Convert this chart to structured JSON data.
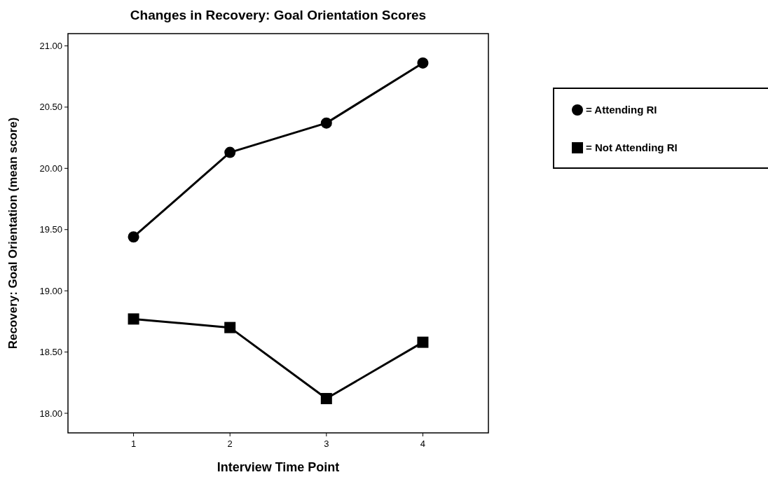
{
  "chart_data": {
    "type": "line",
    "title": "Changes in Recovery: Goal Orientation Scores",
    "xlabel": "Interview Time Point",
    "ylabel": "Recovery: Goal Orientation (mean score)",
    "x": [
      1,
      2,
      3,
      4
    ],
    "series": [
      {
        "name": "= Attending RI",
        "color": "#000000",
        "marker": "circle",
        "values": [
          19.44,
          20.13,
          20.37,
          20.86
        ]
      },
      {
        "name": "= Not Attending RI",
        "color": "#000000",
        "marker": "square",
        "values": [
          18.77,
          18.7,
          18.12,
          18.58
        ]
      }
    ],
    "xlim": [
      0.32,
      4.68
    ],
    "xticks": [
      1,
      2,
      3,
      4
    ],
    "ylim": [
      17.84,
      21.1
    ],
    "yticks": [
      {
        "value": 18,
        "label": "18.00"
      },
      {
        "value": 18.5,
        "label": "18.50"
      },
      {
        "value": 19,
        "label": "19.00"
      },
      {
        "value": 19.5,
        "label": "19.50"
      },
      {
        "value": 20,
        "label": "20.00"
      },
      {
        "value": 20.5,
        "label": "20.50"
      },
      {
        "value": 21,
        "label": "21.00"
      }
    ],
    "grid": false,
    "legend": "right",
    "line_style": "solid"
  }
}
